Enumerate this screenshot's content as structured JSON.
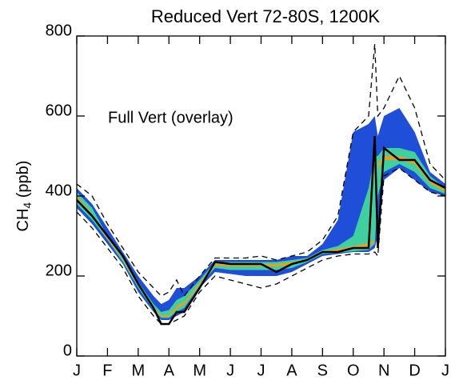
{
  "chart_data": {
    "type": "density",
    "title": "Reduced Vert 72-80S, 1200K",
    "y_label": [
      "CH",
      "4",
      " (ppb)"
    ],
    "annotation": "Full Vert (overlay)",
    "xlim": [
      0,
      12
    ],
    "xticks": [
      {
        "value": 0,
        "label": "J"
      },
      {
        "value": 1,
        "label": "F"
      },
      {
        "value": 2,
        "label": "M"
      },
      {
        "value": 3,
        "label": "A"
      },
      {
        "value": 4,
        "label": "M"
      },
      {
        "value": 5,
        "label": "J"
      },
      {
        "value": 6,
        "label": "J"
      },
      {
        "value": 7,
        "label": "A"
      },
      {
        "value": 8,
        "label": "S"
      },
      {
        "value": 9,
        "label": "O"
      },
      {
        "value": 10,
        "label": "N"
      },
      {
        "value": 11,
        "label": "D"
      },
      {
        "value": 12,
        "label": "J"
      }
    ],
    "ylim": [
      0,
      800
    ],
    "yticks": [
      0,
      200,
      400,
      600,
      800
    ],
    "x": [
      0,
      0.5,
      1,
      1.5,
      2,
      2.5,
      2.75,
      3,
      3.25,
      3.5,
      4,
      4.5,
      5,
      5.5,
      6,
      6.5,
      7,
      7.5,
      8,
      8.5,
      9,
      9.5,
      9.7,
      9.8,
      10,
      10.5,
      11,
      11.5,
      12
    ],
    "bands": [
      {
        "color": "#1f4fd8",
        "upper": [
          420,
          380,
          320,
          260,
          200,
          150,
          130,
          140,
          170,
          170,
          200,
          240,
          240,
          240,
          240,
          240,
          250,
          250,
          280,
          340,
          560,
          580,
          600,
          550,
          600,
          620,
          560,
          460,
          430
        ],
        "lower": [
          370,
          330,
          280,
          230,
          160,
          110,
          90,
          90,
          100,
          110,
          170,
          210,
          205,
          200,
          200,
          200,
          210,
          230,
          250,
          255,
          260,
          260,
          270,
          300,
          440,
          470,
          440,
          410,
          400
        ]
      },
      {
        "color": "#40d0a0",
        "upper": [
          410,
          370,
          300,
          245,
          185,
          130,
          110,
          115,
          140,
          150,
          190,
          235,
          235,
          235,
          235,
          235,
          240,
          245,
          265,
          275,
          300,
          420,
          500,
          500,
          520,
          520,
          510,
          450,
          420
        ],
        "lower": [
          380,
          340,
          290,
          235,
          170,
          115,
          95,
          95,
          110,
          120,
          175,
          220,
          215,
          215,
          215,
          215,
          220,
          235,
          255,
          258,
          262,
          265,
          280,
          400,
          460,
          480,
          460,
          420,
          405
        ]
      },
      {
        "color": "#e8a020",
        "upper": [
          400,
          355,
          296,
          240,
          180,
          122,
          102,
          102,
          125,
          135,
          183,
          230,
          230,
          230,
          230,
          230,
          235,
          242,
          262,
          268,
          275,
          282,
          290,
          480,
          500,
          500,
          490,
          440,
          415
        ],
        "lower": [
          392,
          348,
          292,
          238,
          176,
          118,
          98,
          98,
          118,
          128,
          178,
          226,
          224,
          224,
          224,
          224,
          228,
          238,
          258,
          262,
          268,
          275,
          285,
          470,
          490,
          490,
          480,
          432,
          410
        ]
      }
    ],
    "series": [
      {
        "color": "#000000",
        "dash": false,
        "values": [
          390,
          350,
          300,
          250,
          180,
          120,
          80,
          80,
          110,
          110,
          170,
          235,
          230,
          230,
          230,
          210,
          230,
          240,
          260,
          260,
          270,
          270,
          550,
          270,
          520,
          490,
          490,
          440,
          420
        ]
      },
      {
        "color": "#000000",
        "dash": true,
        "values": [
          430,
          400,
          330,
          270,
          210,
          170,
          150,
          160,
          190,
          150,
          200,
          245,
          245,
          245,
          250,
          240,
          250,
          260,
          290,
          350,
          560,
          600,
          780,
          600,
          620,
          700,
          620,
          480,
          440
        ]
      },
      {
        "color": "#000000",
        "dash": true,
        "values": [
          360,
          320,
          270,
          220,
          150,
          100,
          80,
          80,
          90,
          100,
          160,
          200,
          190,
          180,
          170,
          180,
          200,
          220,
          240,
          250,
          255,
          255,
          260,
          250,
          450,
          470,
          440,
          410,
          400
        ]
      }
    ]
  }
}
